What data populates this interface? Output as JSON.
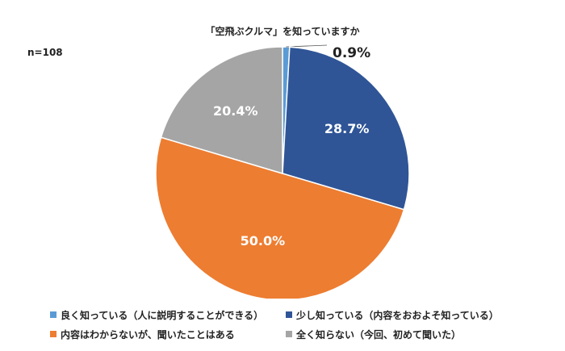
{
  "chart_data": {
    "type": "pie",
    "title": "「空飛ぶクルマ」を知っていますか",
    "note": "n=108",
    "series": [
      {
        "name": "良く知っている（人に説明することができる）",
        "value": 0.9,
        "label": "0.9%",
        "color": "#5B9BD5"
      },
      {
        "name": "少し知っている（内容をおおよそ知っている）",
        "value": 28.7,
        "label": "28.7%",
        "color": "#2F5597"
      },
      {
        "name": "内容はわからないが、聞いたことはある",
        "value": 50.0,
        "label": "50.0%",
        "color": "#ED7D31"
      },
      {
        "name": "全く知らない（今回、初めて聞いた）",
        "value": 20.4,
        "label": "20.4%",
        "color": "#A5A5A5"
      }
    ],
    "legend": "bottom"
  }
}
